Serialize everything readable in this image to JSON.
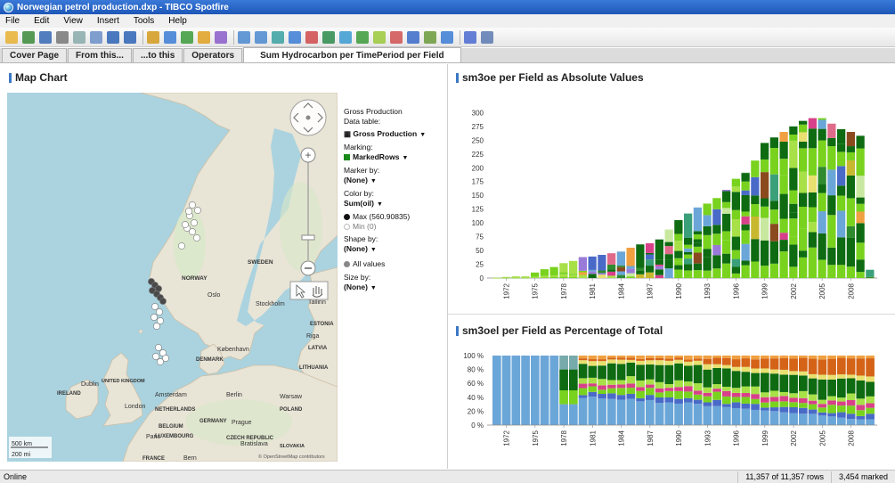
{
  "window": {
    "title": "Norwegian petrol production.dxp - TIBCO Spotfire"
  },
  "menu": [
    "File",
    "Edit",
    "View",
    "Insert",
    "Tools",
    "Help"
  ],
  "toolbar_icons": [
    "open-icon",
    "new-icon",
    "save-icon",
    "print-icon",
    "copy-icon",
    "paste-icon",
    "undo-icon",
    "redo-icon",
    "refresh-icon",
    "filter-icon",
    "details-icon",
    "tags-icon",
    "bookmark-icon",
    "table-visual-icon",
    "cross-table-icon",
    "graphical-table-icon",
    "line-chart-icon",
    "pie-chart-icon",
    "scatter-plot-icon",
    "3d-scatter-icon",
    "map-chart-icon",
    "tree-map-icon",
    "heat-map-icon",
    "parallel-coordinates-icon",
    "box-plot-icon",
    "summary-table-icon",
    "settings-icon",
    "layout-icon"
  ],
  "tabs": [
    {
      "label": "Cover Page",
      "active": false
    },
    {
      "label": "From this...",
      "active": false
    },
    {
      "label": "...to this",
      "active": false
    },
    {
      "label": "Operators",
      "active": false
    },
    {
      "label": "Sum Hydrocarbon per TimePeriod per Field",
      "active": true
    }
  ],
  "map_panel": {
    "title": "Map Chart",
    "scale": {
      "km": "500 km",
      "mi": "200 mi"
    },
    "attribution": "© OpenStreetMap contributors",
    "labels": [
      {
        "text": "SWEDEN"
      },
      {
        "text": "NORWAY"
      },
      {
        "text": "Oslo"
      },
      {
        "text": "Stockholm"
      },
      {
        "text": "Tallinn"
      },
      {
        "text": "ESTONIA"
      },
      {
        "text": "Riga"
      },
      {
        "text": "LATVIA"
      },
      {
        "text": "København"
      },
      {
        "text": "DENMARK"
      },
      {
        "text": "LITHUANIA"
      },
      {
        "text": "Dublin"
      },
      {
        "text": "UNITED KINGDOM"
      },
      {
        "text": "IRELAND"
      },
      {
        "text": "London"
      },
      {
        "text": "Amsterdam"
      },
      {
        "text": "NETHERLANDS"
      },
      {
        "text": "Berlin"
      },
      {
        "text": "Warsaw"
      },
      {
        "text": "POLAND"
      },
      {
        "text": "GERMANY"
      },
      {
        "text": "Prague"
      },
      {
        "text": "CZECH REPUBLIC"
      },
      {
        "text": "BELGIUM"
      },
      {
        "text": "LUXEMBOURG"
      },
      {
        "text": "Paris"
      },
      {
        "text": "SLOVAKIA"
      },
      {
        "text": "Bratislava"
      },
      {
        "text": "FRANCE"
      },
      {
        "text": "Bern"
      }
    ]
  },
  "legend": {
    "title": "Gross Production",
    "data_table_label": "Data table:",
    "data_table_value": "Gross Production",
    "marking_label": "Marking:",
    "marking_value": "MarkedRows",
    "marker_by_label": "Marker by:",
    "marker_by_value": "(None)",
    "color_by_label": "Color by:",
    "color_by_value": "Sum(oil)",
    "max_label": "Max (560.90835)",
    "min_label": "Min (0)",
    "shape_by_label": "Shape by:",
    "shape_by_value": "(None)",
    "all_values_label": "All values",
    "size_by_label": "Size by:",
    "size_by_value": "(None)"
  },
  "colors": {
    "marking": "#1a8a1a",
    "bar_green": "#79d21e",
    "bar_dark_green": "#0e6b12",
    "bar_blue": "#6ba6d8",
    "bar_orange": "#d46318"
  },
  "chart_data": [
    {
      "type": "bar",
      "stacked": true,
      "title": "sm3oe per Field as Absolute Values",
      "x_tick_labels": [
        "1972",
        "1975",
        "1978",
        "1981",
        "1984",
        "1987",
        "1990",
        "1993",
        "1996",
        "1999",
        "2002",
        "2005",
        "2008"
      ],
      "years": [
        1971,
        1972,
        1973,
        1974,
        1975,
        1976,
        1977,
        1978,
        1979,
        1980,
        1981,
        1982,
        1983,
        1984,
        1985,
        1986,
        1987,
        1988,
        1989,
        1990,
        1991,
        1992,
        1993,
        1994,
        1995,
        1996,
        1997,
        1998,
        1999,
        2000,
        2001,
        2002,
        2003,
        2004,
        2005,
        2006,
        2007,
        2008,
        2009,
        2010
      ],
      "totals": [
        0.5,
        2,
        3,
        3,
        10,
        16,
        20,
        27,
        31,
        38,
        39,
        42,
        45,
        48,
        55,
        61,
        63,
        70,
        88,
        105,
        117,
        128,
        135,
        145,
        160,
        180,
        191,
        213,
        245,
        255,
        265,
        275,
        285,
        290,
        290,
        280,
        270,
        265,
        258,
        15
      ],
      "ylim": [
        0,
        320
      ],
      "yticks": [
        0,
        25,
        50,
        75,
        100,
        125,
        150,
        175,
        200,
        225,
        250,
        275,
        300
      ]
    },
    {
      "type": "bar",
      "stacked": true,
      "percent": true,
      "title": "sm3oel per Field as Percentage of Total",
      "x_tick_labels": [
        "1972",
        "1975",
        "1978",
        "1981",
        "1984",
        "1987",
        "1990",
        "1993",
        "1996",
        "1999",
        "2002",
        "2005",
        "2008"
      ],
      "yticks": [
        "0 %",
        "20 %",
        "40 %",
        "60 %",
        "80 %",
        "100 %"
      ]
    }
  ],
  "status": {
    "left": "Online",
    "rows": "11,357 of 11,357 rows",
    "marked": "3,454 marked"
  }
}
